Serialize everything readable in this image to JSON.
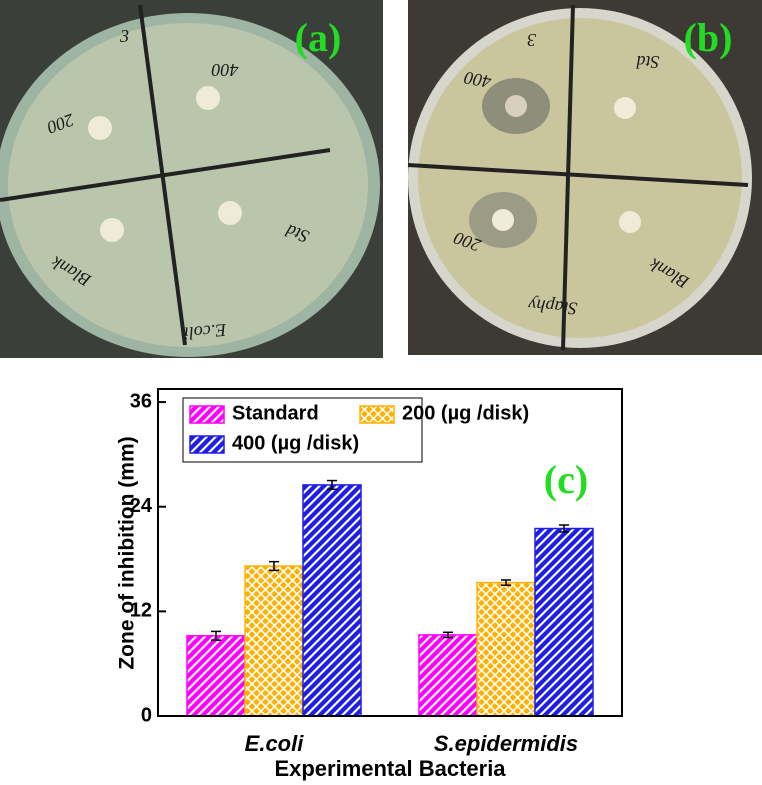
{
  "photos": [
    {
      "label": "(a)",
      "notes": [
        "3",
        "400",
        "200",
        "Std",
        "Blank",
        "E.coli"
      ]
    },
    {
      "label": "(b)",
      "notes": [
        "3",
        "Std",
        "400",
        "200",
        "Blank",
        "Staphy"
      ]
    }
  ],
  "chart_data": {
    "type": "bar",
    "panel_label": "(c)",
    "x_label": "Experimental Bacteria",
    "y_label": "Zone of inhibition (mm)",
    "categories": [
      "E.coli",
      "S.epidermidis"
    ],
    "series": [
      {
        "name": "Standard",
        "color": "#ff00ff",
        "hatch": "////",
        "values": [
          9.2,
          9.3
        ],
        "errors": [
          0.5,
          0.3
        ]
      },
      {
        "name": "200 (µg /disk)",
        "color": "#ffb000",
        "hatch": "xxxx",
        "values": [
          17.2,
          15.3
        ],
        "errors": [
          0.5,
          0.3
        ]
      },
      {
        "name": "400 (µg /disk)",
        "color": "#1e1ee6",
        "hatch": "////",
        "values": [
          26.5,
          21.5
        ],
        "errors": [
          0.5,
          0.4
        ]
      }
    ],
    "ylim": [
      0,
      37.5
    ],
    "yticks": [
      0,
      12,
      24,
      36
    ],
    "legend": "upper left"
  }
}
